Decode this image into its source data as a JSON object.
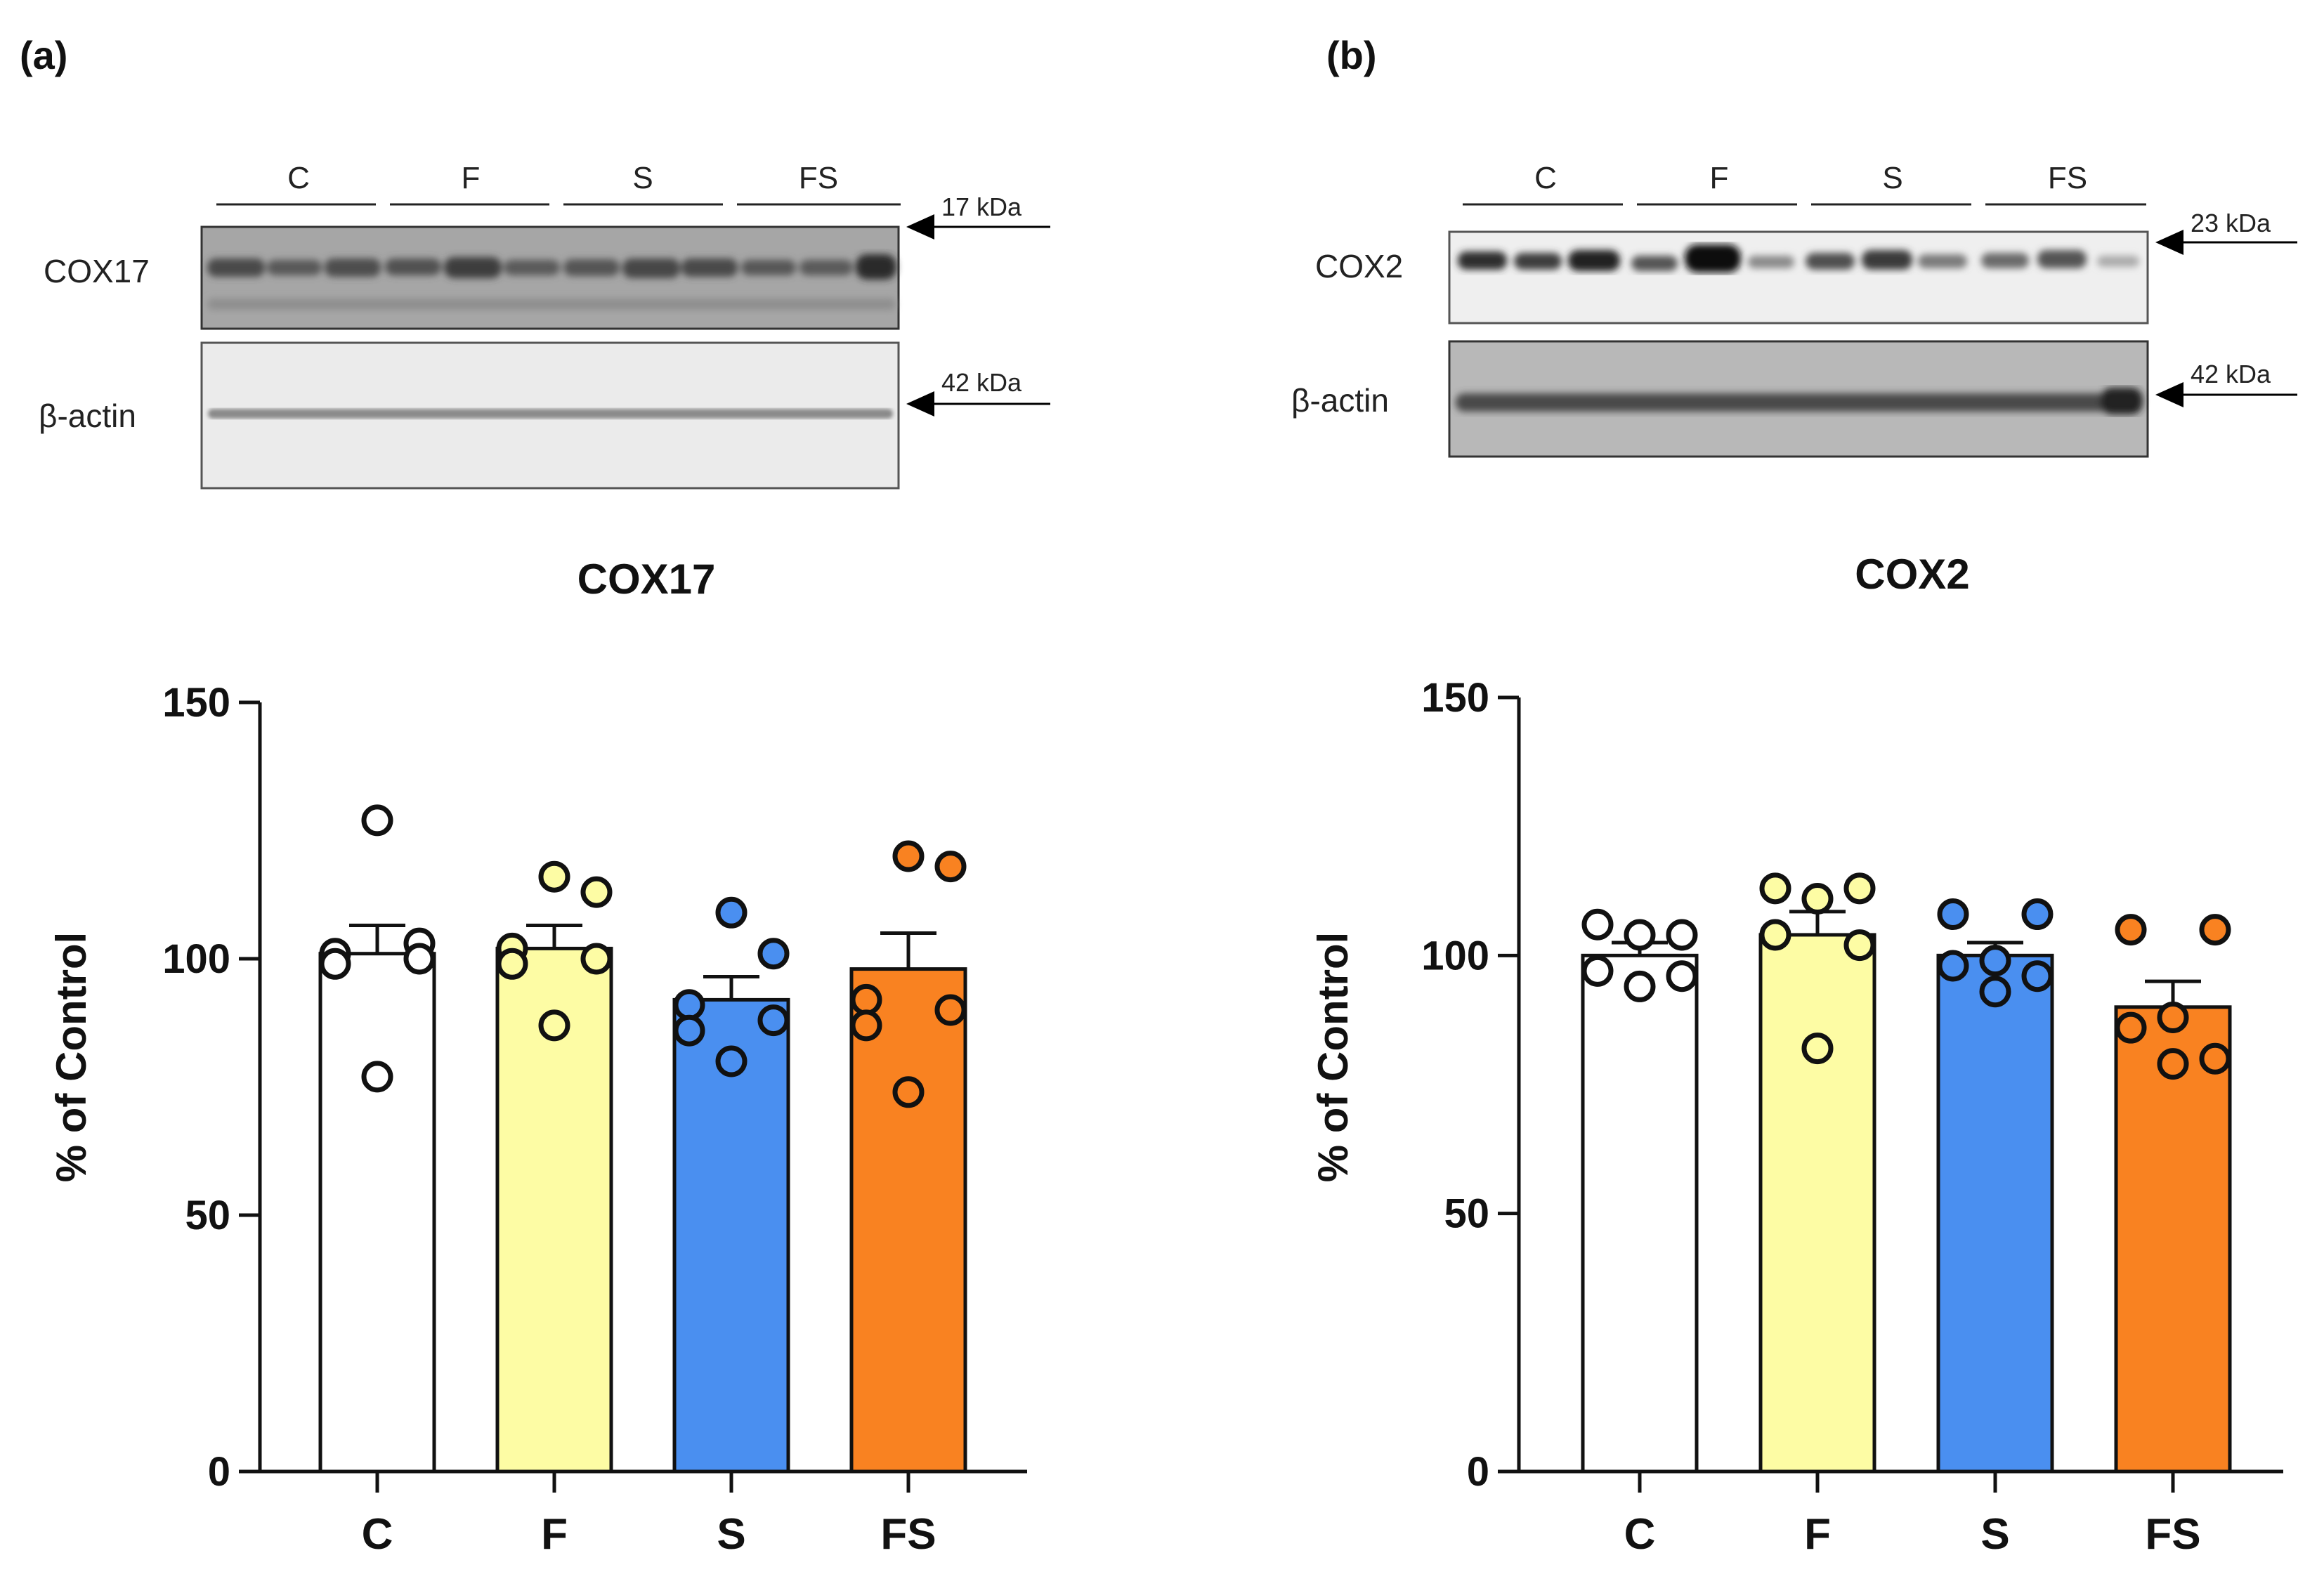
{
  "panels": [
    {
      "label": "(a)",
      "blot": {
        "groups": [
          "C",
          "F",
          "S",
          "FS"
        ],
        "rows": [
          {
            "name": "COX17",
            "kda": "17 kDa"
          },
          {
            "name": "β-actin",
            "kda": "42 kDa"
          }
        ]
      }
    },
    {
      "label": "(b)",
      "blot": {
        "groups": [
          "C",
          "F",
          "S",
          "FS"
        ],
        "rows": [
          {
            "name": "COX2",
            "kda": "23 kDa"
          },
          {
            "name": "β-actin",
            "kda": "42 kDa"
          }
        ]
      }
    }
  ],
  "colors": {
    "C": "#ffffff",
    "F": "#fdfca4",
    "S": "#4a8ff0",
    "FS": "#f98221",
    "axis": "#111111"
  },
  "chart_data": [
    {
      "type": "bar",
      "title": "COX17",
      "categories": [
        "C",
        "F",
        "S",
        "FS"
      ],
      "values": [
        101,
        102,
        92,
        98
      ],
      "errors": [
        5.5,
        4.5,
        4.5,
        7
      ],
      "points": [
        [
          127,
          103,
          101,
          100,
          99,
          77
        ],
        [
          116,
          113,
          102,
          100,
          99,
          87
        ],
        [
          109,
          101,
          91,
          88,
          86,
          80
        ],
        [
          120,
          118,
          92,
          90,
          87,
          74
        ]
      ],
      "xlabel": "",
      "ylabel": "% of Control",
      "ylim": [
        0,
        150
      ],
      "yticks": [
        0,
        50,
        100,
        150
      ]
    },
    {
      "type": "bar",
      "title": "COX2",
      "categories": [
        "C",
        "F",
        "S",
        "FS"
      ],
      "values": [
        100,
        104,
        100,
        90
      ],
      "errors": [
        2.5,
        4.5,
        2.5,
        5
      ],
      "points": [
        [
          106,
          104,
          104,
          97,
          96,
          94
        ],
        [
          113,
          113,
          111,
          104,
          102,
          82
        ],
        [
          108,
          108,
          99,
          98,
          96,
          93
        ],
        [
          105,
          105,
          88,
          86,
          80,
          79
        ]
      ],
      "xlabel": "",
      "ylabel": "% of Control",
      "ylim": [
        0,
        150
      ],
      "yticks": [
        0,
        50,
        100,
        150
      ]
    }
  ]
}
